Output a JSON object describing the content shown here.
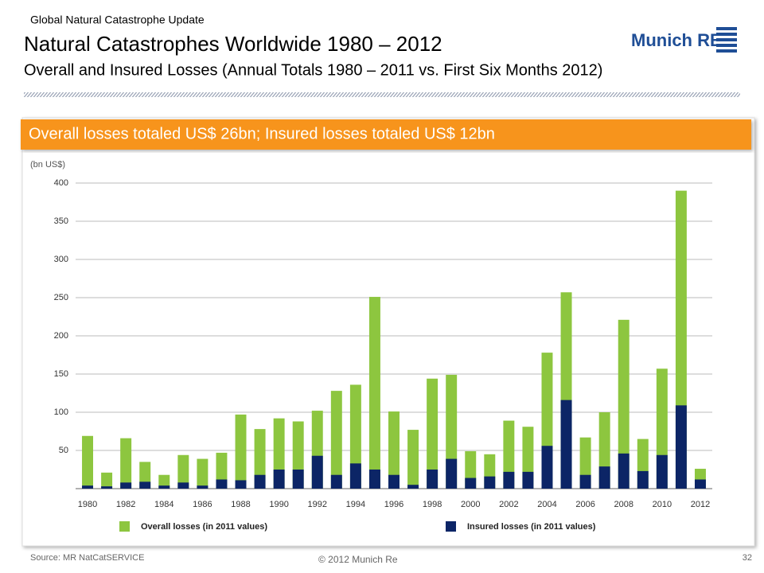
{
  "header": {
    "section": "Global Natural Catastrophe Update",
    "title": "Natural Catastrophes Worldwide 1980 – 2012",
    "subtitle": "Overall and Insured Losses (Annual Totals 1980 – 2011 vs. First Six Months 2012)",
    "logo": "Munich RE"
  },
  "banner": "Overall losses totaled US$ 26bn; Insured losses totaled US$ 12bn",
  "chart_data": {
    "type": "bar",
    "y_label": "(bn US$)",
    "categories": [
      "1980",
      null,
      "1982",
      null,
      "1984",
      null,
      "1986",
      null,
      "1988",
      null,
      "1990",
      null,
      "1992",
      null,
      "1994",
      null,
      "1996",
      null,
      "1998",
      null,
      "2000",
      null,
      "2002",
      null,
      "2004",
      null,
      "2006",
      null,
      "2008",
      null,
      "2010",
      null,
      "2012"
    ],
    "series": [
      {
        "name": "Overall losses (in 2011 values)",
        "color": "#8dc63f",
        "values": [
          69,
          21,
          66,
          35,
          18,
          44,
          39,
          47,
          97,
          78,
          92,
          88,
          102,
          128,
          136,
          251,
          101,
          77,
          144,
          149,
          49,
          45,
          89,
          81,
          178,
          257,
          67,
          100,
          221,
          65,
          157,
          390,
          26
        ]
      },
      {
        "name": "Insured losses (in 2011 values)",
        "color": "#0c2566",
        "values": [
          4,
          3,
          8,
          9,
          4,
          8,
          4,
          12,
          11,
          18,
          25,
          25,
          43,
          18,
          33,
          25,
          18,
          5,
          25,
          39,
          14,
          16,
          22,
          22,
          56,
          116,
          18,
          29,
          46,
          23,
          44,
          109,
          12
        ]
      }
    ],
    "ylim": [
      0,
      400
    ],
    "yticks": [
      50,
      100,
      150,
      200,
      250,
      300,
      350,
      400
    ],
    "grid": true
  },
  "footer": {
    "source": "Source: MR NatCatSERVICE",
    "copyright": "© 2012 Munich Re",
    "page": "32"
  }
}
